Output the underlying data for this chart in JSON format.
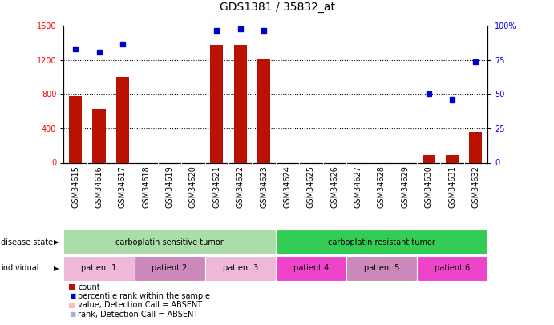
{
  "title": "GDS1381 / 35832_at",
  "samples": [
    "GSM34615",
    "GSM34616",
    "GSM34617",
    "GSM34618",
    "GSM34619",
    "GSM34620",
    "GSM34621",
    "GSM34622",
    "GSM34623",
    "GSM34624",
    "GSM34625",
    "GSM34626",
    "GSM34627",
    "GSM34628",
    "GSM34629",
    "GSM34630",
    "GSM34631",
    "GSM34632"
  ],
  "counts": [
    780,
    630,
    1000,
    0,
    0,
    0,
    1380,
    1380,
    1220,
    0,
    0,
    0,
    0,
    0,
    0,
    90,
    90,
    350
  ],
  "percentile_ranks": [
    83,
    81,
    87,
    null,
    null,
    null,
    97,
    98,
    97,
    null,
    null,
    null,
    null,
    null,
    null,
    50,
    46,
    74
  ],
  "ylim_left": [
    0,
    1600
  ],
  "ylim_right": [
    0,
    100
  ],
  "yticks_left": [
    0,
    400,
    800,
    1200,
    1600
  ],
  "yticks_right": [
    0,
    25,
    50,
    75,
    100
  ],
  "disease_state_groups": [
    {
      "label": "carboplatin sensitive tumor",
      "start": 0,
      "end": 8,
      "color": "#aaddaa"
    },
    {
      "label": "carboplatin resistant tumor",
      "start": 9,
      "end": 17,
      "color": "#33cc55"
    }
  ],
  "patient_groups": [
    {
      "label": "patient 1",
      "start": 0,
      "end": 2,
      "color": "#f0b8d8"
    },
    {
      "label": "patient 2",
      "start": 3,
      "end": 5,
      "color": "#cc88bb"
    },
    {
      "label": "patient 3",
      "start": 6,
      "end": 8,
      "color": "#f0b8d8"
    },
    {
      "label": "patient 4",
      "start": 9,
      "end": 11,
      "color": "#ee44cc"
    },
    {
      "label": "patient 5",
      "start": 12,
      "end": 14,
      "color": "#cc88bb"
    },
    {
      "label": "patient 6",
      "start": 15,
      "end": 17,
      "color": "#ee44cc"
    }
  ],
  "bar_color": "#bb1100",
  "dot_color": "#0000cc",
  "absent_bar_color": "#ffbbbb",
  "absent_dot_color": "#aaaadd",
  "grid_color": "#000000",
  "background_color": "#ffffff",
  "label_fontsize": 7,
  "tick_fontsize": 7,
  "title_fontsize": 10,
  "xlabels_bg": "#cccccc",
  "separator_color": "#888888"
}
